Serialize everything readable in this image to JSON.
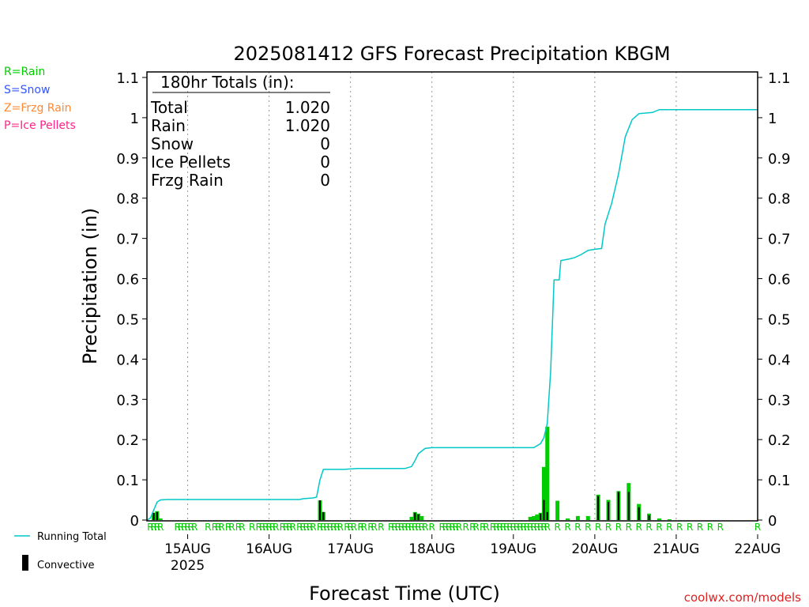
{
  "chart_data": {
    "type": "bar",
    "title": "2025081412 GFS Forecast Precipitation KBGM",
    "xlabel": "Forecast Time (UTC)",
    "ylabel": "Precipitation (in)",
    "credit": "coolwx.com/models",
    "ylim": [
      0,
      1.1
    ],
    "y_ticks": [
      "0",
      "0.1",
      "0.2",
      "0.3",
      "0.4",
      "0.5",
      "0.6",
      "0.7",
      "0.8",
      "0.9",
      "1",
      "1.1"
    ],
    "x_range_hours": [
      0,
      180
    ],
    "x_axis_unit": "forecast hour from 2025-08-14 12 UTC",
    "x_ticks": [
      {
        "label": "15AUG",
        "hour": 12
      },
      {
        "label": "16AUG",
        "hour": 36
      },
      {
        "label": "17AUG",
        "hour": 60
      },
      {
        "label": "18AUG",
        "hour": 84
      },
      {
        "label": "19AUG",
        "hour": 108
      },
      {
        "label": "20AUG",
        "hour": 132
      },
      {
        "label": "21AUG",
        "hour": 156
      },
      {
        "label": "22AUG",
        "hour": 180
      }
    ],
    "year_label": "2025",
    "grid": "dotted vertical at each day",
    "legend_precip_types": [
      {
        "label": "R=Rain",
        "color": "#00cc00"
      },
      {
        "label": "S=Snow",
        "color": "#3355ff"
      },
      {
        "label": "Z=Frzg Rain",
        "color": "#ff8833"
      },
      {
        "label": "P=Ice Pellets",
        "color": "#ff2288"
      }
    ],
    "legend_series": [
      {
        "label": "Running Total",
        "color": "#00c8c8"
      },
      {
        "label": "Convective",
        "color": "#000000"
      }
    ],
    "totals_box": {
      "heading": "180hr Totals (in):",
      "rows": [
        {
          "label": "Total",
          "value": "1.020"
        },
        {
          "label": "Rain",
          "value": "1.020"
        },
        {
          "label": "Snow",
          "value": "0"
        },
        {
          "label": "Ice Pellets",
          "value": "0"
        },
        {
          "label": "Frzg Rain",
          "value": "0"
        }
      ]
    },
    "rain_marker": "R",
    "series": [
      {
        "name": "Running Total",
        "points": [
          [
            0,
            0
          ],
          [
            1,
            0.005
          ],
          [
            2,
            0.025
          ],
          [
            3,
            0.045
          ],
          [
            4,
            0.05
          ],
          [
            6,
            0.051
          ],
          [
            30,
            0.051
          ],
          [
            45,
            0.051
          ],
          [
            46,
            0.053
          ],
          [
            49,
            0.055
          ],
          [
            50,
            0.057
          ],
          [
            51,
            0.1
          ],
          [
            52,
            0.126
          ],
          [
            58,
            0.126
          ],
          [
            62,
            0.128
          ],
          [
            76,
            0.128
          ],
          [
            78,
            0.133
          ],
          [
            79,
            0.148
          ],
          [
            80,
            0.165
          ],
          [
            82,
            0.178
          ],
          [
            84,
            0.18
          ],
          [
            114,
            0.18
          ],
          [
            116,
            0.19
          ],
          [
            117,
            0.205
          ],
          [
            118,
            0.24
          ],
          [
            119,
            0.37
          ],
          [
            120,
            0.597
          ],
          [
            121.5,
            0.597
          ],
          [
            122,
            0.645
          ],
          [
            124,
            0.648
          ],
          [
            126,
            0.652
          ],
          [
            128,
            0.66
          ],
          [
            130,
            0.67
          ],
          [
            132,
            0.673
          ],
          [
            134,
            0.675
          ],
          [
            135,
            0.735
          ],
          [
            137,
            0.788
          ],
          [
            139,
            0.86
          ],
          [
            141,
            0.953
          ],
          [
            143,
            0.995
          ],
          [
            145,
            1.01
          ],
          [
            149,
            1.013
          ],
          [
            151,
            1.02
          ],
          [
            180,
            1.02
          ]
        ]
      },
      {
        "name": "Precipitation",
        "points": [
          [
            2,
            0.018
          ],
          [
            3,
            0.022
          ],
          [
            4,
            0.004
          ],
          [
            51,
            0.049
          ],
          [
            52,
            0.02
          ],
          [
            78,
            0.008
          ],
          [
            79,
            0.02
          ],
          [
            80,
            0.016
          ],
          [
            81,
            0.01
          ],
          [
            113,
            0.008
          ],
          [
            114,
            0.01
          ],
          [
            115,
            0.014
          ],
          [
            116,
            0.018
          ],
          [
            117,
            0.132
          ],
          [
            118,
            0.232
          ],
          [
            121,
            0.048
          ],
          [
            124,
            0.004
          ],
          [
            127,
            0.01
          ],
          [
            130,
            0.01
          ],
          [
            133,
            0.063
          ],
          [
            136,
            0.05
          ],
          [
            139,
            0.072
          ],
          [
            142,
            0.092
          ],
          [
            145,
            0.04
          ],
          [
            148,
            0.016
          ],
          [
            151,
            0.004
          ],
          [
            154,
            0.002
          ]
        ]
      },
      {
        "name": "Convective",
        "points": [
          [
            2,
            0.018
          ],
          [
            3,
            0.02
          ],
          [
            51,
            0.049
          ],
          [
            52,
            0.02
          ],
          [
            79,
            0.018
          ],
          [
            80,
            0.014
          ],
          [
            116,
            0.016
          ],
          [
            117,
            0.05
          ],
          [
            118,
            0.02
          ],
          [
            133,
            0.06
          ],
          [
            136,
            0.045
          ],
          [
            139,
            0.07
          ],
          [
            142,
            0.07
          ],
          [
            145,
            0.032
          ],
          [
            148,
            0.012
          ]
        ]
      }
    ],
    "ptype_marker_hours": [
      1,
      2,
      3,
      4,
      9,
      10,
      11,
      12,
      13,
      14,
      18,
      20,
      21,
      22,
      24,
      25,
      27,
      28,
      31,
      33,
      34,
      35,
      36,
      37,
      38,
      40,
      41,
      42,
      43,
      45,
      46,
      47,
      48,
      49,
      51,
      52,
      53,
      54,
      55,
      56,
      57,
      59,
      60,
      61,
      63,
      64,
      66,
      67,
      69,
      72,
      73,
      74,
      75,
      76,
      77,
      78,
      79,
      80,
      81,
      82,
      84,
      87,
      88,
      89,
      90,
      91,
      92,
      94,
      96,
      97,
      99,
      100,
      102,
      103,
      104,
      105,
      106,
      107,
      108,
      109,
      110,
      111,
      112,
      113,
      114,
      115,
      116,
      117,
      118,
      121,
      124,
      127,
      130,
      133,
      136,
      139,
      142,
      145,
      148,
      151,
      154,
      157,
      160,
      163,
      166,
      169,
      180
    ]
  }
}
